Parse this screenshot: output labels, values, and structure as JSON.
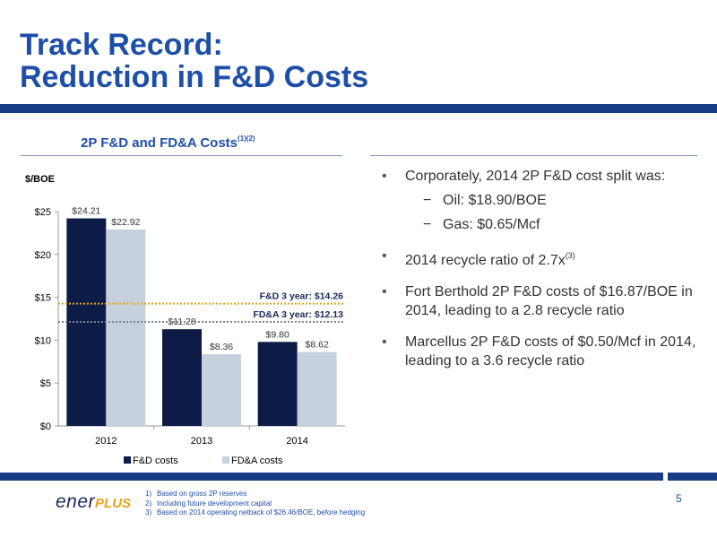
{
  "title": {
    "line1": "Track Record:",
    "line2": "Reduction in F&D Costs"
  },
  "chart_heading": {
    "text": "2P F&D and FD&A Costs",
    "superscript": "(1)(2)"
  },
  "chart_data": {
    "type": "bar",
    "ylabel": "$/BOE",
    "categories": [
      "2012",
      "2013",
      "2014"
    ],
    "series": [
      {
        "name": "F&D costs",
        "values": [
          24.21,
          11.28,
          9.8
        ],
        "labels": [
          "$24.21",
          "$11.28",
          "$9.80"
        ],
        "color": "#0c1c47"
      },
      {
        "name": "FD&A costs",
        "values": [
          22.92,
          8.36,
          8.62
        ],
        "labels": [
          "$22.92",
          "$8.36",
          "$8.62"
        ],
        "color": "#c7d1de"
      }
    ],
    "ylim": [
      0,
      25
    ],
    "yticks": [
      0,
      5,
      10,
      15,
      20,
      25
    ],
    "ytick_labels": [
      "$0",
      "$5",
      "$10",
      "$15",
      "$20",
      "$25"
    ],
    "reference_lines": [
      {
        "label": "F&D 3 year: $14.26",
        "value": 14.26,
        "color": "#e8a317"
      },
      {
        "label": "FD&A 3 year: $12.13",
        "value": 12.13,
        "color": "#7a8596"
      }
    ],
    "legend_position": "bottom",
    "grid": false
  },
  "bullets": [
    {
      "text": "Corporately, 2014 2P F&D cost split was:",
      "sub": [
        "Oil: $18.90/BOE",
        "Gas: $0.65/Mcf"
      ]
    },
    {
      "text": "2014 recycle ratio of 2.7x",
      "sup": "(3)"
    },
    {
      "text": "Fort Berthold 2P F&D costs of $16.87/BOE in 2014, leading to a 2.8 recycle ratio"
    },
    {
      "text": "Marcellus 2P F&D costs of $0.50/Mcf in 2014, leading to a 3.6 recycle ratio"
    }
  ],
  "bullet_symbol": "•",
  "sub_symbol": "−",
  "logo": {
    "part1": "ener",
    "part2": "PLUS"
  },
  "footnotes": [
    {
      "num": "1)",
      "text": "Based on gross 2P reserves"
    },
    {
      "num": "2)",
      "text": "Including future development capital"
    },
    {
      "num": "3)",
      "text": "Based on 2014 operating netback of $26.46/BOE, before hedging"
    }
  ],
  "page_number": "5",
  "colors": {
    "title": "#1e4fa8",
    "bar_band": "#183d85"
  }
}
